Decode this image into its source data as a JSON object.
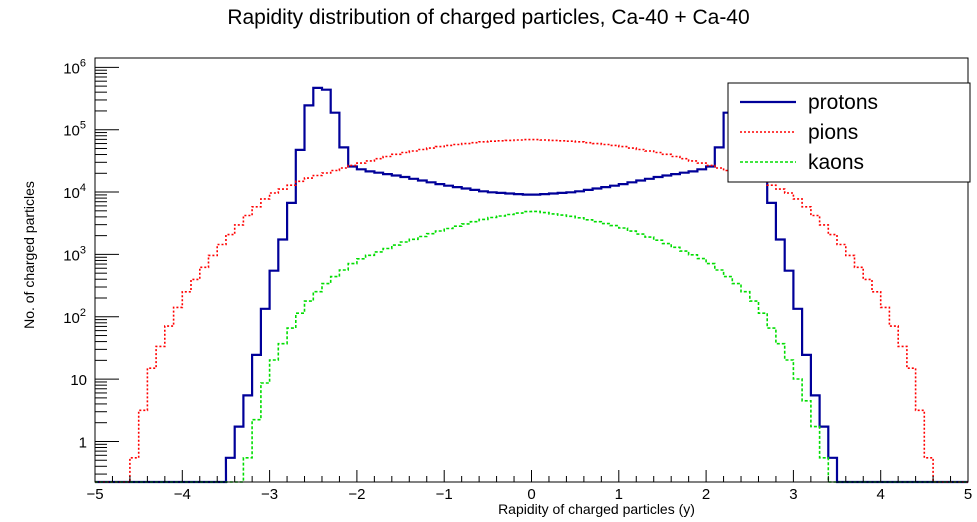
{
  "chart_data": {
    "type": "line",
    "style": "histogram-step",
    "title": "Rapidity distribution of charged particles, Ca-40 + Ca-40",
    "xlabel": "Rapidity of charged particles (y)",
    "ylabel": "No. of charged particles",
    "xlim": [
      -5,
      5
    ],
    "ylim_log10": [
      -0.65,
      6.15
    ],
    "log_y": true,
    "grid": false,
    "legend_position": "top-right",
    "x_ticks": [
      -5,
      -4,
      -3,
      -2,
      -1,
      0,
      1,
      2,
      3,
      4,
      5
    ],
    "x_tick_labels": [
      "−5",
      "−4",
      "−3",
      "−2",
      "−1",
      "0",
      "1",
      "2",
      "3",
      "4",
      "5"
    ],
    "y_ticks": [
      {
        "value": 1,
        "label": "1",
        "sup": ""
      },
      {
        "value": 10,
        "label": "10",
        "sup": ""
      },
      {
        "value": 100,
        "label": "10",
        "sup": "2"
      },
      {
        "value": 1000,
        "label": "10",
        "sup": "3"
      },
      {
        "value": 10000,
        "label": "10",
        "sup": "4"
      },
      {
        "value": 100000,
        "label": "10",
        "sup": "5"
      },
      {
        "value": 1000000,
        "label": "10",
        "sup": "6"
      }
    ],
    "series": [
      {
        "name": "protons",
        "color": "#000099",
        "dash": "",
        "width": 2.2,
        "floor_below": -3.5,
        "floor_above": 3.5,
        "points": [
          [
            -3.5,
            0.3
          ],
          [
            -3.4,
            1
          ],
          [
            -3.3,
            3
          ],
          [
            -3.2,
            10
          ],
          [
            -3.1,
            60
          ],
          [
            -3.0,
            300
          ],
          [
            -2.9,
            1000
          ],
          [
            -2.8,
            3000
          ],
          [
            -2.7,
            15000
          ],
          [
            -2.6,
            150000
          ],
          [
            -2.5,
            400000
          ],
          [
            -2.4,
            550000
          ],
          [
            -2.3,
            350000
          ],
          [
            -2.2,
            100000
          ],
          [
            -2.1,
            27000
          ],
          [
            -1.9,
            22000
          ],
          [
            -1.5,
            18000
          ],
          [
            -1.0,
            13000
          ],
          [
            -0.5,
            10000
          ],
          [
            0.0,
            9000
          ],
          [
            0.5,
            10000
          ],
          [
            1.0,
            13000
          ],
          [
            1.5,
            18000
          ],
          [
            1.9,
            22000
          ],
          [
            2.1,
            27000
          ],
          [
            2.2,
            100000
          ],
          [
            2.3,
            350000
          ],
          [
            2.4,
            550000
          ],
          [
            2.5,
            400000
          ],
          [
            2.6,
            150000
          ],
          [
            2.7,
            15000
          ],
          [
            2.8,
            3000
          ],
          [
            2.9,
            1000
          ],
          [
            3.0,
            300
          ],
          [
            3.1,
            60
          ],
          [
            3.2,
            10
          ],
          [
            3.3,
            3
          ],
          [
            3.4,
            1
          ],
          [
            3.5,
            0.3
          ]
        ]
      },
      {
        "name": "pions",
        "color": "#ff0000",
        "dash": "2,2",
        "width": 1.6,
        "floor_below": -4.6,
        "floor_above": 4.6,
        "points": [
          [
            -4.6,
            0.3
          ],
          [
            -4.5,
            1
          ],
          [
            -4.4,
            10
          ],
          [
            -4.2,
            50
          ],
          [
            -4.0,
            200
          ],
          [
            -3.8,
            500
          ],
          [
            -3.6,
            1200
          ],
          [
            -3.4,
            2500
          ],
          [
            -3.2,
            5000
          ],
          [
            -3.0,
            9000
          ],
          [
            -2.6,
            16000
          ],
          [
            -2.0,
            28000
          ],
          [
            -1.5,
            42000
          ],
          [
            -1.0,
            55000
          ],
          [
            -0.5,
            65000
          ],
          [
            0.0,
            70000
          ],
          [
            0.5,
            65000
          ],
          [
            1.0,
            55000
          ],
          [
            1.5,
            42000
          ],
          [
            2.0,
            28000
          ],
          [
            2.6,
            16000
          ],
          [
            3.0,
            9000
          ],
          [
            3.2,
            5000
          ],
          [
            3.4,
            2500
          ],
          [
            3.6,
            1200
          ],
          [
            3.8,
            500
          ],
          [
            4.0,
            200
          ],
          [
            4.2,
            50
          ],
          [
            4.4,
            10
          ],
          [
            4.5,
            1
          ],
          [
            4.6,
            0.3
          ]
        ]
      },
      {
        "name": "kaons",
        "color": "#00dd00",
        "dash": "3,2",
        "width": 1.6,
        "floor_below": -3.3,
        "floor_above": 3.4,
        "points": [
          [
            -3.3,
            0.3
          ],
          [
            -3.2,
            1
          ],
          [
            -3.1,
            5
          ],
          [
            -3.0,
            15
          ],
          [
            -2.8,
            50
          ],
          [
            -2.6,
            150
          ],
          [
            -2.4,
            300
          ],
          [
            -2.2,
            500
          ],
          [
            -2.0,
            800
          ],
          [
            -1.5,
            1500
          ],
          [
            -1.0,
            2500
          ],
          [
            -0.5,
            3800
          ],
          [
            0.0,
            5000
          ],
          [
            0.5,
            4000
          ],
          [
            1.0,
            2800
          ],
          [
            1.5,
            1600
          ],
          [
            2.0,
            800
          ],
          [
            2.2,
            500
          ],
          [
            2.4,
            300
          ],
          [
            2.6,
            150
          ],
          [
            2.8,
            50
          ],
          [
            3.0,
            15
          ],
          [
            3.2,
            3
          ],
          [
            3.3,
            1
          ],
          [
            3.4,
            0.3
          ]
        ]
      }
    ]
  }
}
